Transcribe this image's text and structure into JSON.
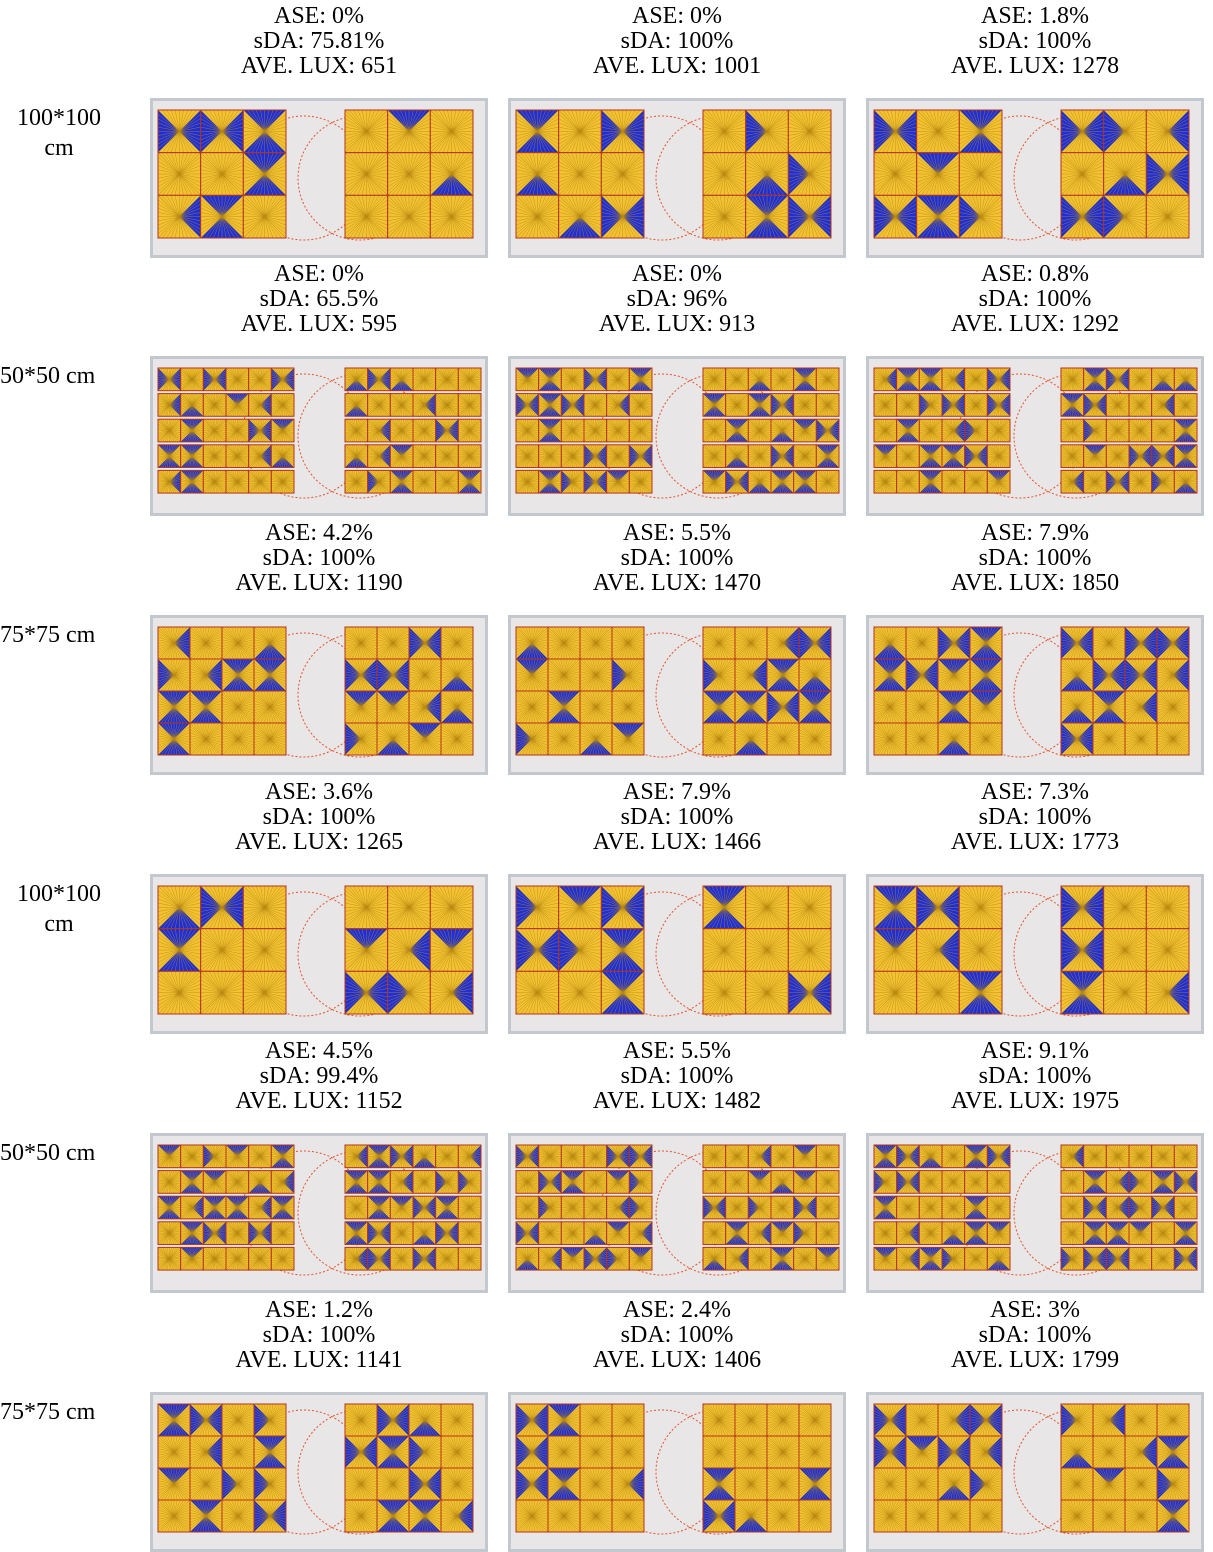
{
  "colors": {
    "glare": "#1f2fd8",
    "lit": "#f2c232",
    "background": "#e8e6e6",
    "frame": "#c3c8cf",
    "border": "#b5341a",
    "circle": "#e5542e"
  },
  "rows": [
    {
      "label": "100*100 cm",
      "grid": 3,
      "cells": [
        {
          "ase": "ASE: 0%",
          "sda": "sDA: 75.81%",
          "lux": "AVE. LUX: 651"
        },
        {
          "ase": "ASE: 0%",
          "sda": "sDA: 100%",
          "lux": "AVE. LUX: 1001"
        },
        {
          "ase": "ASE: 1.8%",
          "sda": "sDA: 100%",
          "lux": "AVE. LUX: 1278"
        }
      ]
    },
    {
      "label": "50*50 cm",
      "grid": 6,
      "cells": [
        {
          "ase": "ASE: 0%",
          "sda": "sDA: 65.5%",
          "lux": "AVE. LUX: 595"
        },
        {
          "ase": "ASE: 0%",
          "sda": "sDA: 96%",
          "lux": "AVE. LUX: 913"
        },
        {
          "ase": "ASE: 0.8%",
          "sda": "sDA: 100%",
          "lux": "AVE. LUX: 1292"
        }
      ]
    },
    {
      "label": "75*75 cm",
      "grid": 4,
      "cells": [
        {
          "ase": "ASE: 4.2%",
          "sda": "sDA: 100%",
          "lux": "AVE. LUX: 1190"
        },
        {
          "ase": "ASE: 5.5%",
          "sda": "sDA: 100%",
          "lux": "AVE. LUX: 1470"
        },
        {
          "ase": "ASE: 7.9%",
          "sda": "sDA: 100%",
          "lux": "AVE. LUX: 1850"
        }
      ]
    },
    {
      "label": "100*100 cm",
      "grid": 3,
      "cells": [
        {
          "ase": "ASE: 3.6%",
          "sda": "sDA: 100%",
          "lux": "AVE. LUX: 1265"
        },
        {
          "ase": "ASE: 7.9%",
          "sda": "sDA: 100%",
          "lux": "AVE. LUX: 1466"
        },
        {
          "ase": "ASE: 7.3%",
          "sda": "sDA: 100%",
          "lux": "AVE. LUX: 1773"
        }
      ]
    },
    {
      "label": "50*50 cm",
      "grid": 6,
      "cells": [
        {
          "ase": "ASE: 4.5%",
          "sda": "sDA: 99.4%",
          "lux": "AVE. LUX: 1152"
        },
        {
          "ase": "ASE: 5.5%",
          "sda": "sDA: 100%",
          "lux": "AVE. LUX: 1482"
        },
        {
          "ase": "ASE: 9.1%",
          "sda": "sDA: 100%",
          "lux": "AVE. LUX: 1975"
        }
      ]
    },
    {
      "label": "75*75 cm",
      "grid": 4,
      "cells": [
        {
          "ase": "ASE: 1.2%",
          "sda": "sDA: 100%",
          "lux": "AVE. LUX: 1141"
        },
        {
          "ase": "ASE: 2.4%",
          "sda": "sDA: 100%",
          "lux": "AVE. LUX: 1406"
        },
        {
          "ase": "ASE: 3%",
          "sda": "sDA: 100%",
          "lux": "AVE. LUX: 1799"
        }
      ]
    }
  ]
}
